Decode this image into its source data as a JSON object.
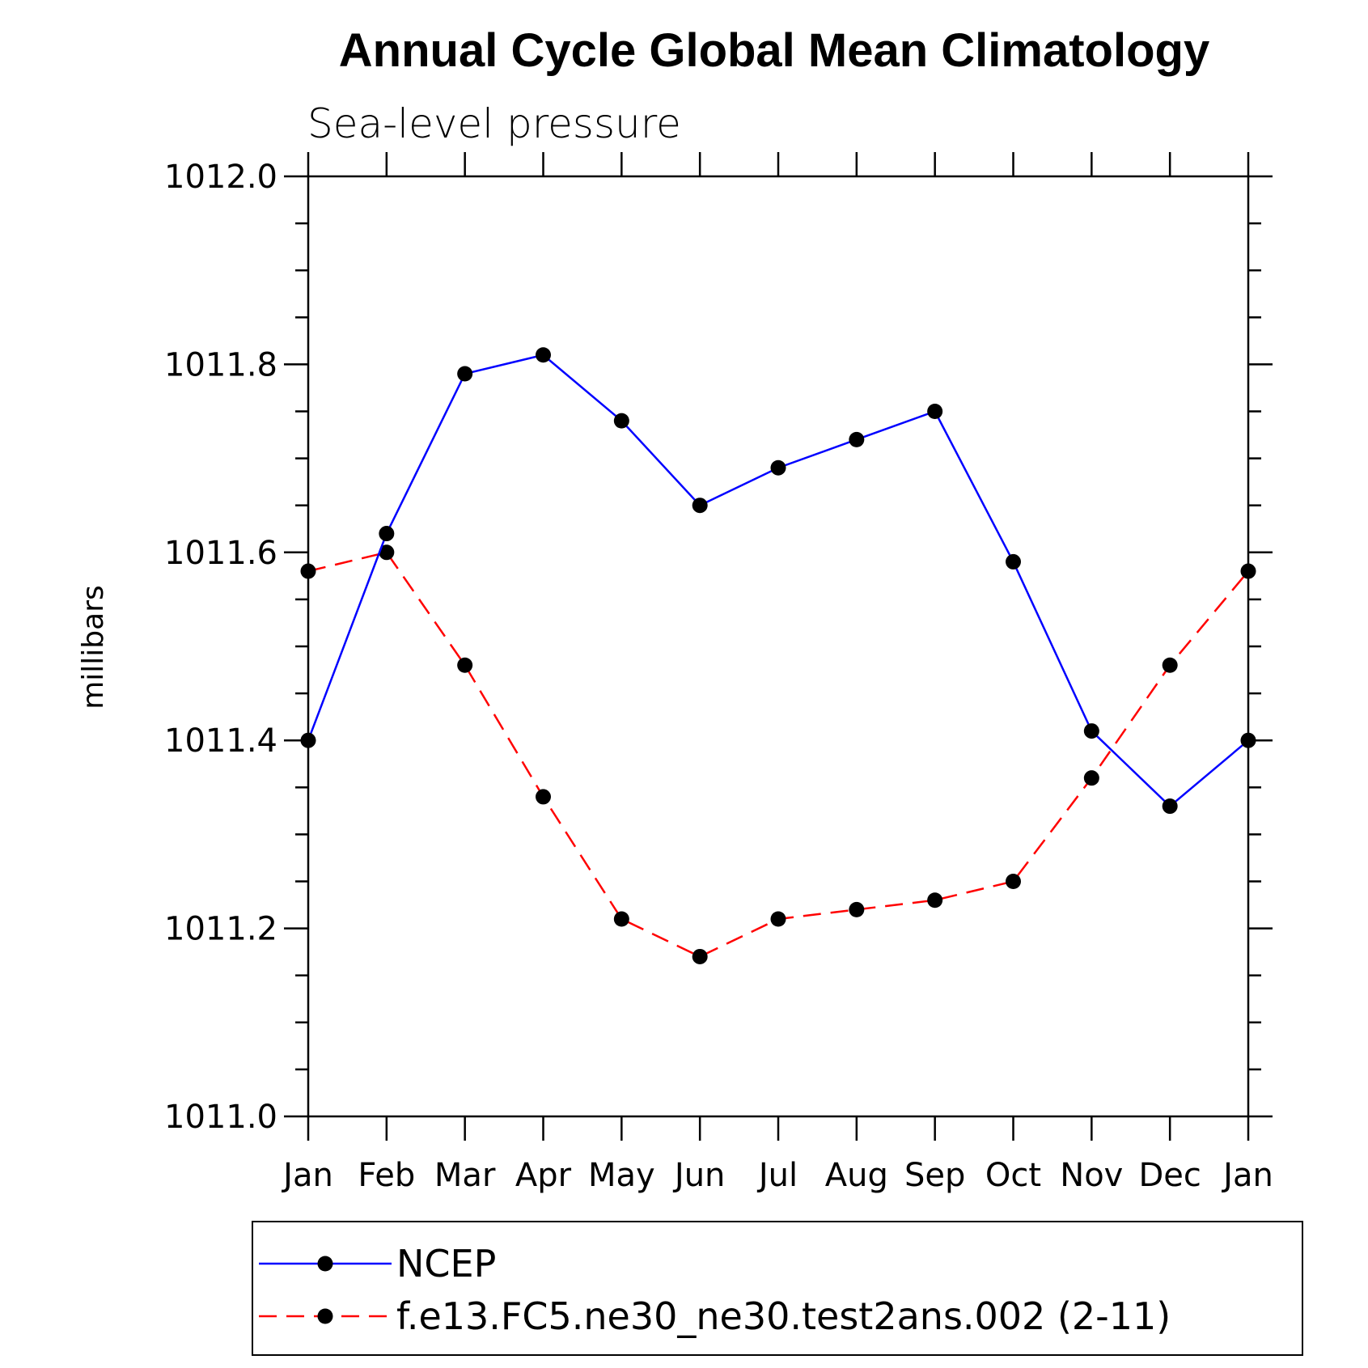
{
  "chart_data": {
    "type": "line",
    "title": "Annual Cycle Global Mean Climatology",
    "subtitle": "Sea-level pressure",
    "ylabel": "millibars",
    "xlabel": "",
    "categories": [
      "Jan",
      "Feb",
      "Mar",
      "Apr",
      "May",
      "Jun",
      "Jul",
      "Aug",
      "Sep",
      "Oct",
      "Nov",
      "Dec",
      "Jan"
    ],
    "ylim": [
      1011.0,
      1012.0
    ],
    "yticks": [
      "1011.0",
      "1011.2",
      "1011.4",
      "1011.6",
      "1011.8",
      "1012.0"
    ],
    "series": [
      {
        "name": "NCEP",
        "color": "#0000ff",
        "dash": "solid",
        "values": [
          1011.4,
          1011.62,
          1011.79,
          1011.81,
          1011.74,
          1011.65,
          1011.69,
          1011.72,
          1011.75,
          1011.59,
          1011.41,
          1011.33,
          1011.4
        ]
      },
      {
        "name": "f.e13.FC5.ne30_ne30.test2ans.002 (2-11)",
        "color": "#ff0000",
        "dash": "dashed",
        "values": [
          1011.58,
          1011.6,
          1011.48,
          1011.34,
          1011.21,
          1011.17,
          1011.21,
          1011.22,
          1011.23,
          1011.25,
          1011.36,
          1011.48,
          1011.58
        ]
      }
    ],
    "marker_color": "#000000",
    "legend_position": "bottom"
  }
}
